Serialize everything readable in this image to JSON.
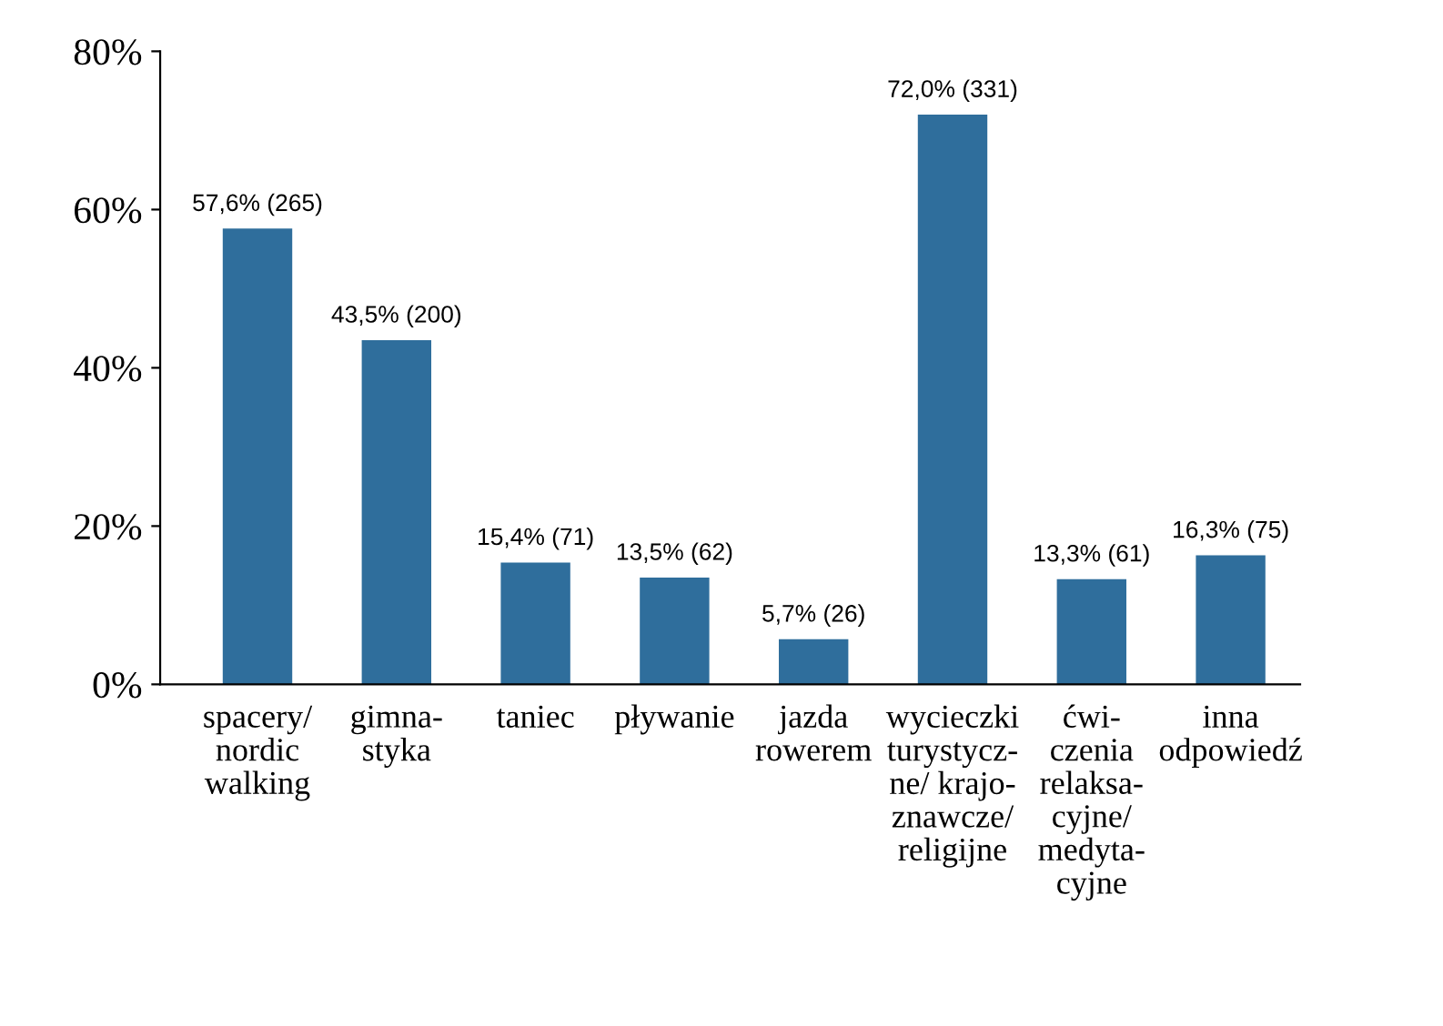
{
  "chart_data": {
    "type": "bar",
    "categories": [
      "spacery/\nnordic\nwalking",
      "gimna-\nstyka",
      "taniec",
      "pływanie",
      "jazda\nrowerem",
      "wycieczki\nturystycz-\nne/ krajo-\nznawcze/\nreligijne",
      "ćwi-\nczenia\nrelaksa-\ncyjne/\nmedyta-\ncyjne",
      "inna\nodpowiedź"
    ],
    "values": [
      57.6,
      43.5,
      15.4,
      13.5,
      5.7,
      72.0,
      13.3,
      16.3
    ],
    "value_labels": [
      "57,6% (265)",
      "43,5% (200)",
      "15,4% (71)",
      "13,5% (62)",
      "5,7% (26)",
      "72,0% (331)",
      "13,3% (61)",
      "16,3% (75)"
    ],
    "color": "#2f6e9c",
    "ylim": [
      0,
      80
    ],
    "yticks": [
      {
        "value": 0,
        "label": "0%"
      },
      {
        "value": 20,
        "label": "20%"
      },
      {
        "value": 40,
        "label": "40%"
      },
      {
        "value": 60,
        "label": "60%"
      },
      {
        "value": 80,
        "label": "80%"
      }
    ],
    "grid": false,
    "legend": false
  }
}
